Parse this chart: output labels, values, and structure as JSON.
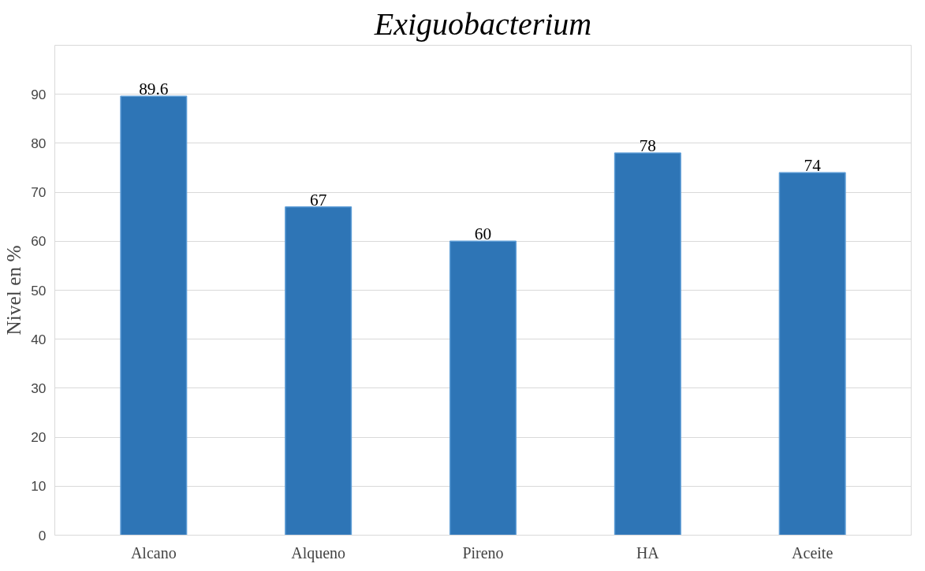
{
  "chart_data": {
    "type": "bar",
    "title": "Exiguobacterium",
    "ylabel": "Nivel en %",
    "categories": [
      "Alcano",
      "Alqueno",
      "Pireno",
      "HA",
      "Aceite"
    ],
    "values": [
      89.6,
      67,
      60,
      78,
      74
    ],
    "color": "#2e75b6",
    "ylim": [
      0,
      100
    ],
    "yticks": [
      0,
      10,
      20,
      30,
      40,
      50,
      60,
      70,
      80,
      90
    ],
    "grid": "y",
    "data_labels": true
  }
}
